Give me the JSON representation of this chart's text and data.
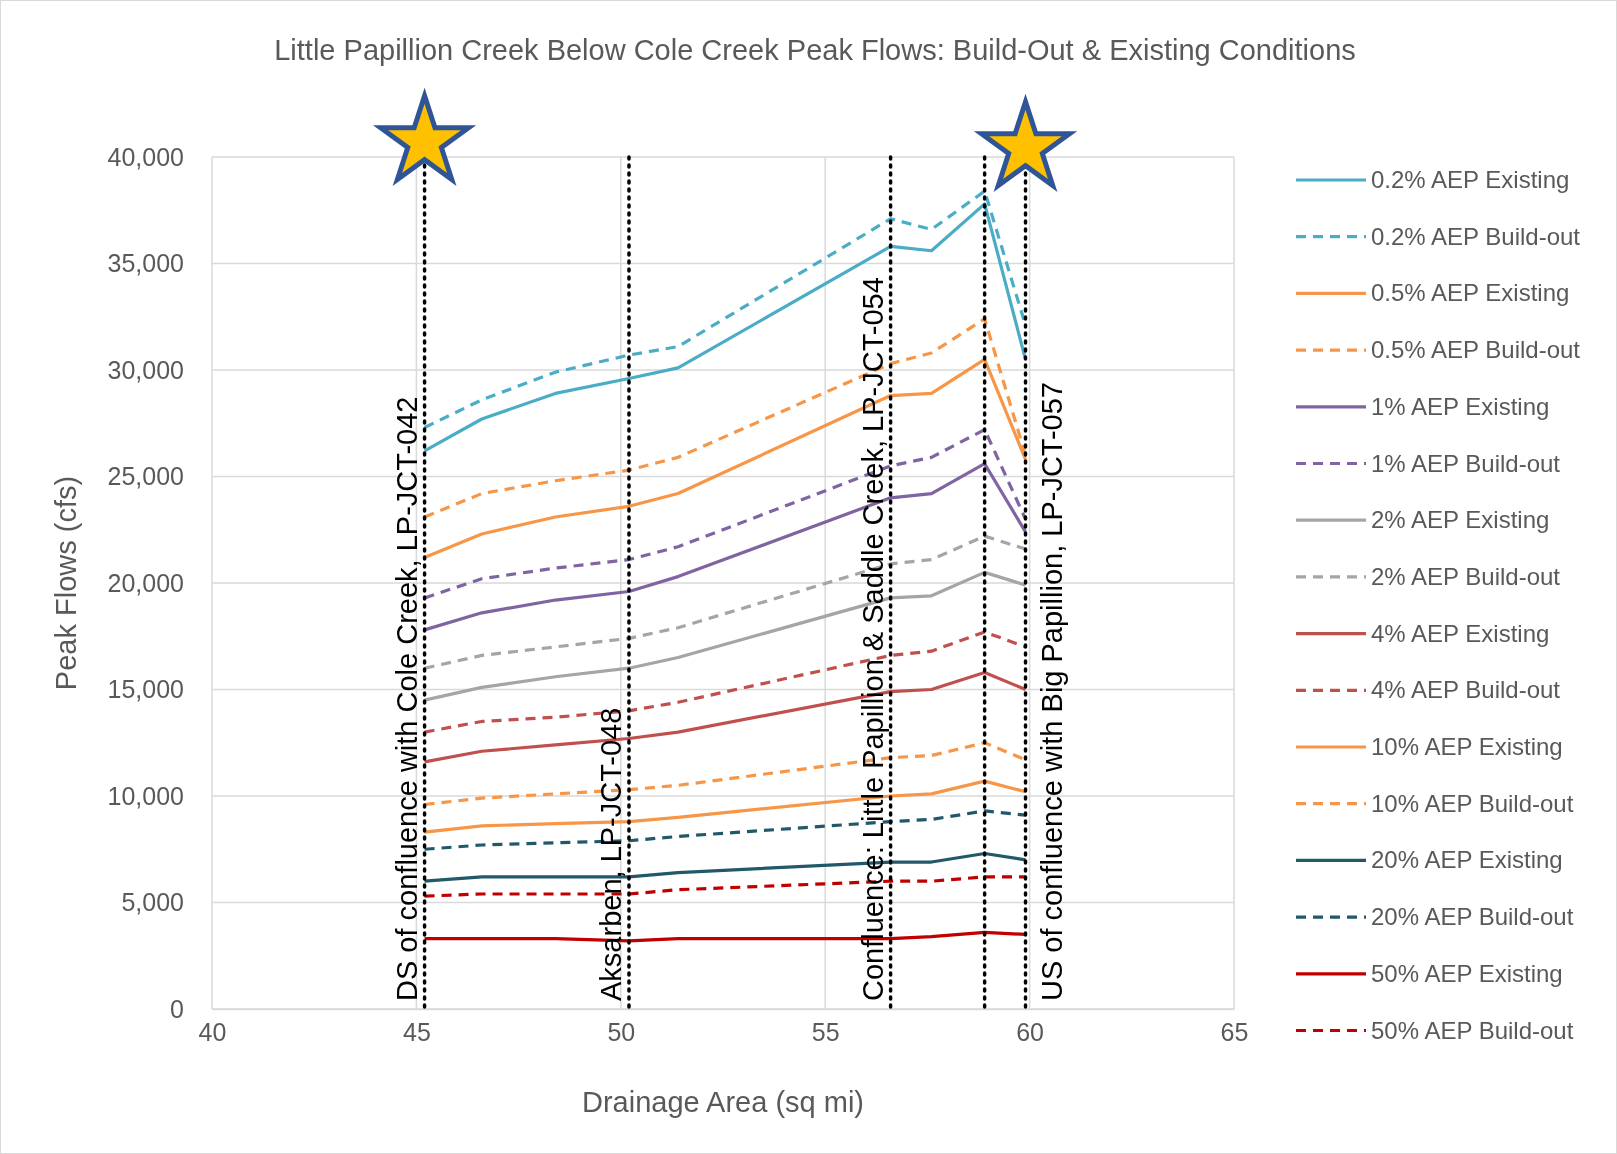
{
  "chart_data": {
    "type": "line",
    "title": "Little Papillion Creek Below Cole Creek Peak Flows: Build-Out & Existing Conditions",
    "xlabel": "Drainage Area (sq mi)",
    "ylabel": "Peak Flows (cfs)",
    "x": [
      45.2,
      46.6,
      48.4,
      50.2,
      51.4,
      56.6,
      57.6,
      58.9,
      59.9
    ],
    "xlim": [
      40,
      65
    ],
    "xticks": [
      40,
      45,
      50,
      55,
      60,
      65
    ],
    "ylim": [
      0,
      40000
    ],
    "yticks": [
      {
        "value": 0,
        "label": "0"
      },
      {
        "value": 5000,
        "label": "5,000"
      },
      {
        "value": 10000,
        "label": "10,000"
      },
      {
        "value": 15000,
        "label": "15,000"
      },
      {
        "value": 20000,
        "label": "20,000"
      },
      {
        "value": 25000,
        "label": "25,000"
      },
      {
        "value": 30000,
        "label": "30,000"
      },
      {
        "value": 35000,
        "label": "35,000"
      },
      {
        "value": 40000,
        "label": "40,000"
      }
    ],
    "grid": true,
    "legend": "right",
    "series": [
      {
        "name": "0.2% AEP Existing",
        "color": "#4bacc6",
        "line_style": "solid",
        "values": [
          26200,
          27700,
          28900,
          29600,
          30100,
          35800,
          35600,
          37800,
          30500
        ]
      },
      {
        "name": "0.2% AEP Build-out",
        "color": "#4bacc6",
        "line_style": "dashed",
        "values": [
          27300,
          28600,
          29900,
          30700,
          31100,
          37100,
          36600,
          38400,
          32100
        ]
      },
      {
        "name": "0.5% AEP Existing",
        "color": "#f79646",
        "line_style": "solid",
        "values": [
          21200,
          22300,
          23100,
          23600,
          24200,
          28800,
          28900,
          30500,
          25800
        ]
      },
      {
        "name": "0.5% AEP Build-out",
        "color": "#f79646",
        "line_style": "dashed",
        "values": [
          23100,
          24200,
          24800,
          25300,
          25900,
          30300,
          30800,
          32400,
          26000
        ]
      },
      {
        "name": "1% AEP Existing",
        "color": "#8064a2",
        "line_style": "solid",
        "values": [
          17800,
          18600,
          19200,
          19600,
          20300,
          24000,
          24200,
          25600,
          22400
        ]
      },
      {
        "name": "1% AEP Build-out",
        "color": "#8064a2",
        "line_style": "dashed",
        "values": [
          19300,
          20200,
          20700,
          21100,
          21700,
          25500,
          25900,
          27200,
          23000
        ]
      },
      {
        "name": "2% AEP Existing",
        "color": "#a5a5a5",
        "line_style": "solid",
        "values": [
          14500,
          15100,
          15600,
          16000,
          16500,
          19300,
          19400,
          20500,
          19900
        ]
      },
      {
        "name": "2% AEP Build-out",
        "color": "#a5a5a5",
        "line_style": "dashed",
        "values": [
          16000,
          16600,
          17000,
          17400,
          17900,
          20900,
          21100,
          22200,
          21600
        ]
      },
      {
        "name": "4% AEP Existing",
        "color": "#c0504d",
        "line_style": "solid",
        "values": [
          11600,
          12100,
          12400,
          12700,
          13000,
          14900,
          15000,
          15800,
          15000
        ]
      },
      {
        "name": "4% AEP Build-out",
        "color": "#c0504d",
        "line_style": "dashed",
        "values": [
          13000,
          13500,
          13700,
          14000,
          14400,
          16600,
          16800,
          17700,
          17000
        ]
      },
      {
        "name": "10% AEP Existing",
        "color": "#f79646",
        "line_style": "solid",
        "values": [
          8300,
          8600,
          8700,
          8800,
          9000,
          10000,
          10100,
          10700,
          10200
        ]
      },
      {
        "name": "10% AEP Build-out",
        "color": "#f79646",
        "line_style": "dashed",
        "values": [
          9600,
          9900,
          10100,
          10300,
          10500,
          11800,
          11900,
          12500,
          11700
        ]
      },
      {
        "name": "20% AEP Existing",
        "color": "#215968",
        "line_style": "solid",
        "values": [
          6000,
          6200,
          6200,
          6200,
          6400,
          6900,
          6900,
          7300,
          7000
        ]
      },
      {
        "name": "20% AEP Build-out",
        "color": "#215968",
        "line_style": "dashed",
        "values": [
          7500,
          7700,
          7800,
          7900,
          8100,
          8800,
          8900,
          9300,
          9100
        ]
      },
      {
        "name": "50% AEP Existing",
        "color": "#c00000",
        "line_style": "solid",
        "values": [
          3300,
          3300,
          3300,
          3200,
          3300,
          3300,
          3400,
          3600,
          3500
        ]
      },
      {
        "name": "50% AEP Build-out",
        "color": "#c00000",
        "line_style": "dashed",
        "values": [
          5300,
          5400,
          5400,
          5400,
          5600,
          6000,
          6000,
          6200,
          6200
        ]
      }
    ],
    "ref_lines": [
      {
        "axis": "x",
        "value": 45.2,
        "label": "DS of confluence with Cole Creek, LP-JCT-042",
        "color": "#000000",
        "line_style": "dotted"
      },
      {
        "axis": "x",
        "value": 50.2,
        "label": "Aksarben, LP-JCT-048",
        "color": "#000000",
        "line_style": "dotted"
      },
      {
        "axis": "x",
        "value": 56.6,
        "label": "Confluence: Little Papillion & Saddle Creek, LP-JCT-054",
        "color": "#000000",
        "line_style": "dotted"
      },
      {
        "axis": "x",
        "value": 58.9,
        "color": "#000000",
        "line_style": "dotted"
      },
      {
        "axis": "x",
        "value": 59.9,
        "label": "US of confluence with Big Papillion, LP-JCT-057",
        "color": "#000000",
        "line_style": "dotted"
      }
    ]
  }
}
